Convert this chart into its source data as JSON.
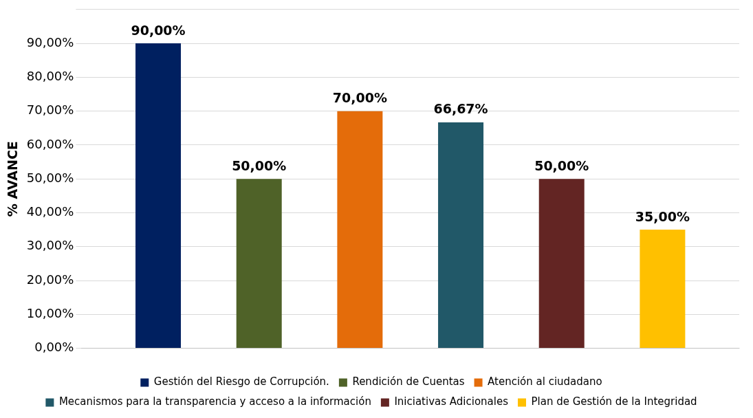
{
  "chart_data": {
    "type": "bar",
    "ylabel": "% AVANCE",
    "categories": [
      null
    ],
    "series": [
      {
        "name": "Gestión del Riesgo de Corrupción.",
        "color": "#002060",
        "values": [
          90
        ],
        "value_labels": [
          "90,00%"
        ]
      },
      {
        "name": "Rendición de Cuentas",
        "color": "#4f6228",
        "values": [
          50
        ],
        "value_labels": [
          "50,00%"
        ]
      },
      {
        "name": "Atención al ciudadano",
        "color": "#e46c0a",
        "values": [
          70
        ],
        "value_labels": [
          "70,00%"
        ]
      },
      {
        "name": "Mecanismos para la transparencia y acceso a la información",
        "color": "#215868",
        "values": [
          66.67
        ],
        "value_labels": [
          "66,67%"
        ]
      },
      {
        "name": "Iniciativas Adicionales",
        "color": "#632523",
        "values": [
          50
        ],
        "value_labels": [
          "50,00%"
        ]
      },
      {
        "name": "Plan de Gestión de la Integridad",
        "color": "#ffc000",
        "values": [
          35
        ],
        "value_labels": [
          "35,00%"
        ]
      }
    ],
    "ylim": [
      0,
      100
    ],
    "yticks": [
      {
        "value": 0,
        "label": "0,00%"
      },
      {
        "value": 10,
        "label": "10,00%"
      },
      {
        "value": 20,
        "label": "20,00%"
      },
      {
        "value": 30,
        "label": "30,00%"
      },
      {
        "value": 40,
        "label": "40,00%"
      },
      {
        "value": 50,
        "label": "50,00%"
      },
      {
        "value": 60,
        "label": "60,00%"
      },
      {
        "value": 70,
        "label": "70,00%"
      },
      {
        "value": 80,
        "label": "80,00%"
      },
      {
        "value": 90,
        "label": "90,00%"
      },
      {
        "value": 100,
        "label": null
      }
    ],
    "grid": "y",
    "legend": "bottom"
  }
}
